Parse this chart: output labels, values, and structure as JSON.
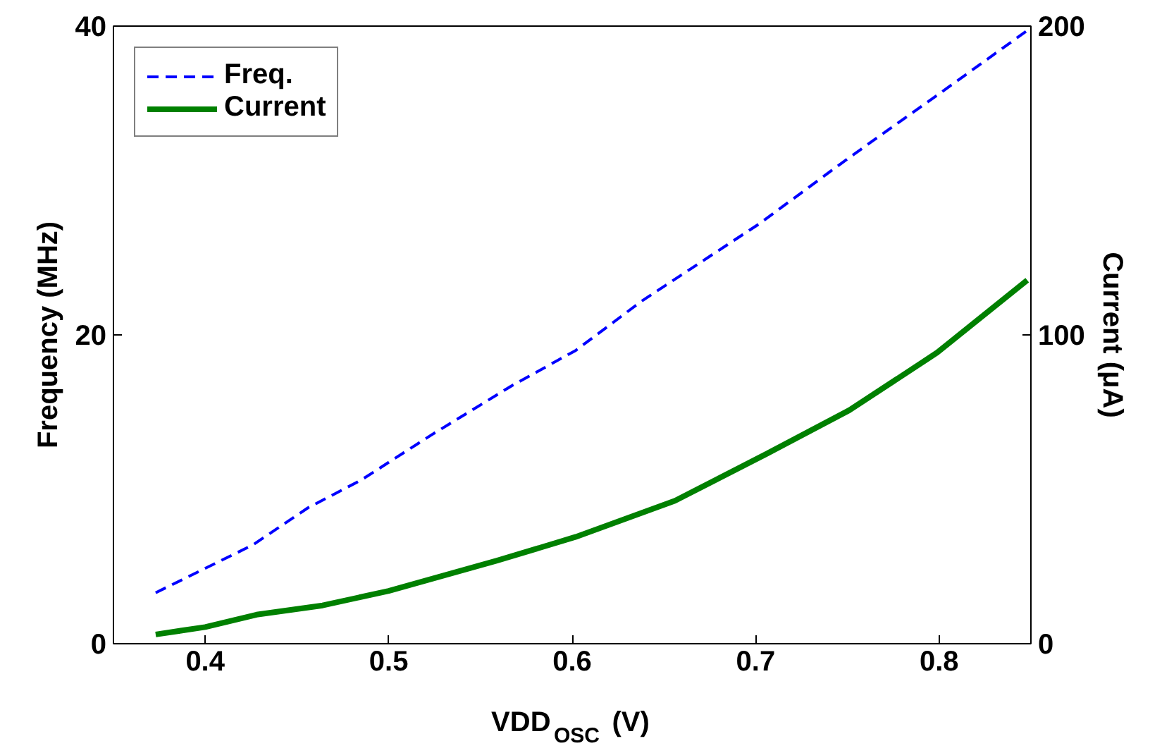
{
  "chart_data": {
    "type": "line",
    "xlabel": "VDD$_{OSC}$ (V)",
    "ylabel": "Frequency (MHz)",
    "y2label": "Current (μA)",
    "xlim": [
      0.35,
      0.85
    ],
    "xticks": [
      0.4,
      0.5,
      0.6,
      0.7,
      0.8
    ],
    "ylim": [
      0,
      40
    ],
    "yticks": [
      0,
      20,
      40
    ],
    "y2lim": [
      0,
      200
    ],
    "y2ticks": [
      0,
      100,
      200
    ],
    "grid": false,
    "legend": "top left",
    "series": [
      {
        "name": "Freq.",
        "color": "#0000ff",
        "line_style": "dashed",
        "x": [
          0.373,
          0.426,
          0.456,
          0.485,
          0.523,
          0.567,
          0.602,
          0.638,
          0.702,
          0.75,
          0.801,
          0.849
        ],
        "values": [
          3.3,
          6.4,
          8.8,
          10.6,
          13.5,
          16.7,
          19.0,
          22.2,
          27.2,
          31.4,
          35.7,
          39.8
        ]
      },
      {
        "name": "Current",
        "color": "#008000",
        "line_style": "solid",
        "axis": "y2",
        "x": [
          0.373,
          0.4,
          0.428,
          0.464,
          0.5,
          0.559,
          0.602,
          0.656,
          0.706,
          0.751,
          0.799,
          0.848
        ],
        "values": [
          3.0,
          5.4,
          9.4,
          12.4,
          17.1,
          26.9,
          34.6,
          46.3,
          61.5,
          75.6,
          94.3,
          117.7
        ]
      }
    ]
  }
}
